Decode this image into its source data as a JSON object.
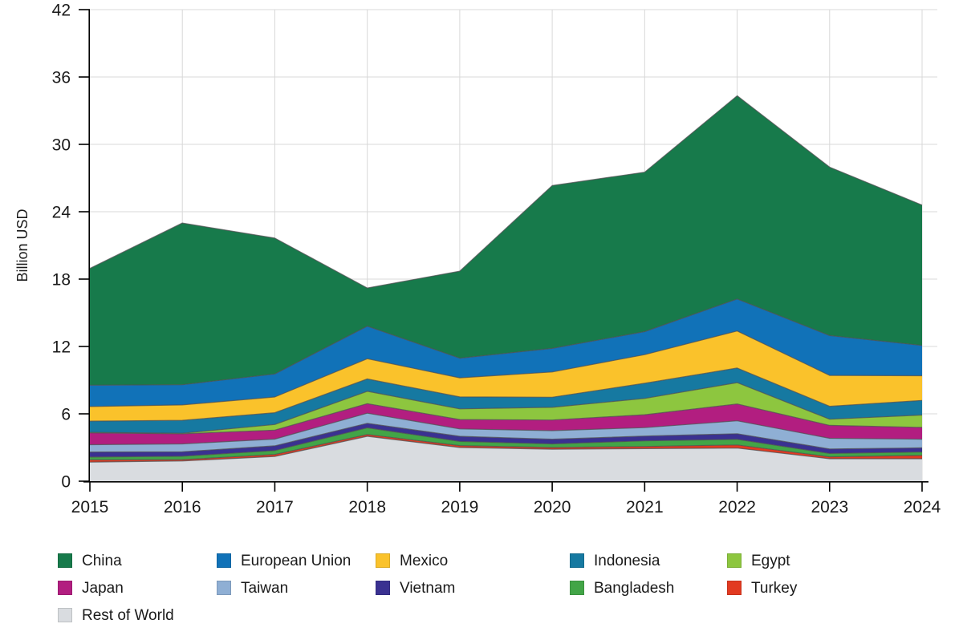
{
  "chart_data": {
    "type": "area",
    "stacked": true,
    "title": "",
    "xlabel": "",
    "ylabel": "Billion USD",
    "ylim": [
      0,
      42
    ],
    "yticks": [
      0,
      6,
      12,
      18,
      24,
      30,
      36,
      42
    ],
    "years": [
      2015,
      2016,
      2017,
      2018,
      2019,
      2020,
      2021,
      2022,
      2023,
      2024
    ],
    "grid": true,
    "legend_position": "bottom",
    "axis_color": "#000000",
    "grid_color": "#d8d8d8",
    "edge_color": "#4f4f51",
    "stack_order_bottom_to_top": [
      "Rest of World",
      "Turkey",
      "Bangladesh",
      "Vietnam",
      "Taiwan",
      "Japan",
      "Egypt",
      "Indonesia",
      "Mexico",
      "European Union",
      "China"
    ],
    "series": [
      {
        "name": "China",
        "color": "#177A4B",
        "values": [
          10.4,
          14.4,
          12.1,
          3.4,
          7.75,
          14.5,
          14.2,
          18.1,
          15.0,
          12.5
        ]
      },
      {
        "name": "European Union",
        "color": "#1172B8",
        "values": [
          1.9,
          1.8,
          2.05,
          2.9,
          1.75,
          2.1,
          2.05,
          2.85,
          3.55,
          2.7
        ]
      },
      {
        "name": "Mexico",
        "color": "#FAC22B",
        "values": [
          1.3,
          1.37,
          1.4,
          1.8,
          1.7,
          2.25,
          2.55,
          3.3,
          2.75,
          2.2
        ]
      },
      {
        "name": "Indonesia",
        "color": "#1679A1",
        "values": [
          1.0,
          1.15,
          1.05,
          1.1,
          1.07,
          0.9,
          1.35,
          1.3,
          1.15,
          1.3
        ]
      },
      {
        "name": "Egypt",
        "color": "#8DC63F",
        "values": [
          0.05,
          0.05,
          0.5,
          1.1,
          0.95,
          1.13,
          1.45,
          1.9,
          0.55,
          1.1
        ]
      },
      {
        "name": "Japan",
        "color": "#B21E80",
        "values": [
          1.05,
          0.9,
          0.8,
          0.85,
          0.83,
          0.95,
          1.15,
          1.5,
          1.15,
          1.05
        ]
      },
      {
        "name": "Taiwan",
        "color": "#8FAFD4",
        "values": [
          0.65,
          0.7,
          0.6,
          0.9,
          0.66,
          0.76,
          0.75,
          1.15,
          0.95,
          0.77
        ]
      },
      {
        "name": "Vietnam",
        "color": "#3A3191",
        "values": [
          0.45,
          0.4,
          0.42,
          0.4,
          0.46,
          0.42,
          0.43,
          0.5,
          0.4,
          0.37
        ]
      },
      {
        "name": "Bangladesh",
        "color": "#42A547",
        "values": [
          0.25,
          0.3,
          0.35,
          0.6,
          0.37,
          0.32,
          0.5,
          0.5,
          0.3,
          0.3
        ]
      },
      {
        "name": "Turkey",
        "color": "#E23A21",
        "values": [
          0.2,
          0.12,
          0.18,
          0.16,
          0.17,
          0.15,
          0.19,
          0.28,
          0.17,
          0.3
        ]
      },
      {
        "name": "Rest of World",
        "color": "#D9DCE0",
        "values": [
          1.7,
          1.8,
          2.2,
          4.0,
          3.0,
          2.85,
          2.9,
          2.95,
          2.0,
          2.0
        ]
      }
    ]
  }
}
